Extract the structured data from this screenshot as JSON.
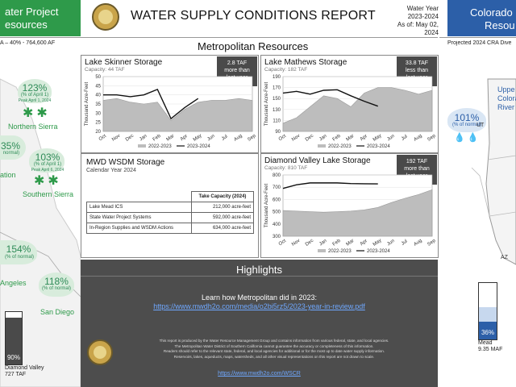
{
  "header": {
    "left_title_line1": "ater Project",
    "left_title_line2": "esources",
    "left_subtitle": "A – 40% - 764,600 AF",
    "title": "WATER SUPPLY CONDITIONS REPORT",
    "water_year_label": "Water Year",
    "water_year": "2023-2024",
    "as_of": "As of: May 02, 2024",
    "right_title_line1": "Colorado",
    "right_title_line2": "Resou",
    "right_subtitle": "Projected 2024 CRA Dive"
  },
  "section_title": "Metropolitan Resources",
  "left_map": {
    "northern_sierra": {
      "pct": "123%",
      "line1": "(% of April 1)",
      "line2": "Peak April 1, 2024",
      "name": "Northern Sierra"
    },
    "central": {
      "pct": "35%",
      "sub": "normal)",
      "name": "ation"
    },
    "southern_sierra": {
      "pct": "103%",
      "line1": "(% of April 1)",
      "line2": "Peak April 6, 2024",
      "name": "Southern Sierra"
    },
    "los_angeles": {
      "pct": "154%",
      "sub": "(% of normal)",
      "name": "Angeles"
    },
    "san_diego": {
      "pct": "118%",
      "sub": "(% of normal)",
      "name": "San Diego"
    },
    "diamond_valley": {
      "pct": "90%",
      "fill": 0.9,
      "name": "Diamond Valley",
      "value": "727 TAF"
    }
  },
  "right_map": {
    "upper_colorado": {
      "line1": "Uppe",
      "line2": "Colora",
      "line3": "River"
    },
    "precip": {
      "pct": "101%",
      "sub": "(% of normal)"
    },
    "ut_label": "UT",
    "az_label": "AZ",
    "mead": {
      "label": "Mead",
      "pct": "36%",
      "fill": 0.36,
      "value": "9.35 MAF"
    }
  },
  "charts": {
    "skinner": {
      "title": "Lake Skinner Storage",
      "capacity": "Capacity: 44 TAF",
      "badge": [
        "2.8 TAF",
        "more than",
        "last year"
      ],
      "ylabel": "Thousand Acre-Feet",
      "legend": [
        "2022-2023",
        "2023-2024"
      ]
    },
    "mathews": {
      "title": "Lake Mathews Storage",
      "capacity": "Capacity: 182 TAF",
      "badge": [
        "33.8 TAF",
        "less than",
        "last year"
      ],
      "ylabel": "Thousand Acre-Feet",
      "legend": [
        "2022-2023",
        "2023-2024"
      ]
    },
    "diamond": {
      "title": "Diamond Valley Lake Storage",
      "capacity": "Capacity: 810 TAF",
      "badge": [
        "192 TAF",
        "more than",
        "last year"
      ],
      "ylabel": "Thousand Acre-Feet",
      "legend": [
        "2022-2023",
        "2023-2024"
      ]
    }
  },
  "wsdm": {
    "title": "MWD WSDM Storage",
    "subtitle": "Calendar Year 2024",
    "header": "Take Capacity (2024)",
    "rows": [
      {
        "name": "Lake Mead ICS",
        "value": "212,000 acre-feet"
      },
      {
        "name": "State Water Project Systems",
        "value": "592,000 acre-feet"
      },
      {
        "name": "In-Region Supplies and WSDM Actions",
        "value": "634,000 acre-feet"
      }
    ]
  },
  "highlights": {
    "title": "Highlights",
    "text": "Learn how Metropolitan did in 2023:",
    "link": "https://www.mwdh2o.com/media/o2bi5rz5/2023-year-in-review.pdf"
  },
  "footer": {
    "lines": [
      "This report is produced by the Water Resource Management Group and contains information from various federal, state, and local agencies.",
      "The Metropolitan Water District of Southern California cannot guarantee the accuracy or completeness of this information.",
      "Readers should refer to the relevant state, federal, and local agencies for additional or for the most up to date water supply information.",
      "Reservoirs, lakes, aqueducts, maps, watersheds, and all other visual representations on this report are not drawn to scale."
    ],
    "link": "https://www.mwdh2o.com/WSCR"
  },
  "chart_data": [
    {
      "type": "area",
      "title": "Lake Skinner Storage",
      "ylabel": "Thousand Acre-Feet",
      "ylim": [
        20,
        50
      ],
      "categories": [
        "Oct",
        "Nov",
        "Dec",
        "Jan",
        "Feb",
        "Mar",
        "Apr",
        "May",
        "Jun",
        "Jul",
        "Aug",
        "Sep"
      ],
      "series": [
        {
          "name": "2022-2023",
          "values": [
            37,
            38,
            36,
            35,
            36,
            26,
            32,
            36,
            37,
            37,
            38,
            37
          ]
        },
        {
          "name": "2023-2024",
          "values": [
            40,
            40,
            39,
            40,
            43,
            27,
            33,
            38,
            null,
            null,
            null,
            null
          ]
        }
      ]
    },
    {
      "type": "area",
      "title": "Lake Mathews Storage",
      "ylabel": "Thousand Acre-Feet",
      "ylim": [
        90,
        190
      ],
      "categories": [
        "Oct",
        "Nov",
        "Dec",
        "Jan",
        "Feb",
        "Mar",
        "Apr",
        "May",
        "Jun",
        "Jul",
        "Aug",
        "Sep"
      ],
      "series": [
        {
          "name": "2022-2023",
          "values": [
            105,
            115,
            135,
            155,
            150,
            135,
            160,
            170,
            170,
            165,
            158,
            165
          ]
        },
        {
          "name": "2023-2024",
          "values": [
            160,
            163,
            158,
            165,
            166,
            155,
            145,
            136,
            null,
            null,
            null,
            null
          ]
        }
      ]
    },
    {
      "type": "area",
      "title": "Diamond Valley Lake Storage",
      "ylabel": "Thousand Acre-Feet",
      "ylim": [
        300,
        800
      ],
      "categories": [
        "Oct",
        "Nov",
        "Dec",
        "Jan",
        "Feb",
        "Mar",
        "Apr",
        "May",
        "Jun",
        "Jul",
        "Aug",
        "Sep"
      ],
      "series": [
        {
          "name": "2022-2023",
          "values": [
            510,
            505,
            500,
            495,
            500,
            505,
            515,
            535,
            575,
            610,
            640,
            680
          ]
        },
        {
          "name": "2023-2024",
          "values": [
            690,
            720,
            735,
            735,
            735,
            730,
            728,
            727,
            null,
            null,
            null,
            null
          ]
        }
      ]
    }
  ]
}
